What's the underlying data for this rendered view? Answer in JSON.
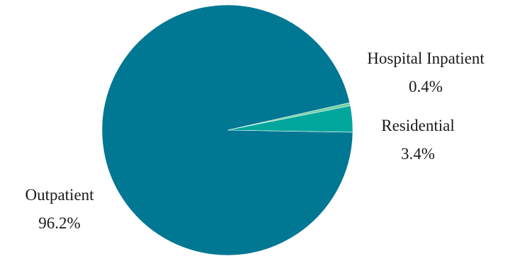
{
  "chart_data": {
    "type": "pie",
    "title": "",
    "slices": [
      {
        "label": "Outpatient",
        "value": 96.2,
        "display": "96.2%",
        "color": "#007793"
      },
      {
        "label": "Residential",
        "value": 3.4,
        "display": "3.4%",
        "color": "#00a69c"
      },
      {
        "label": "Hospital Inpatient",
        "value": 0.4,
        "display": "0.4%",
        "color": "#6fd0a4"
      }
    ],
    "legend": "none",
    "labels": "outside"
  }
}
